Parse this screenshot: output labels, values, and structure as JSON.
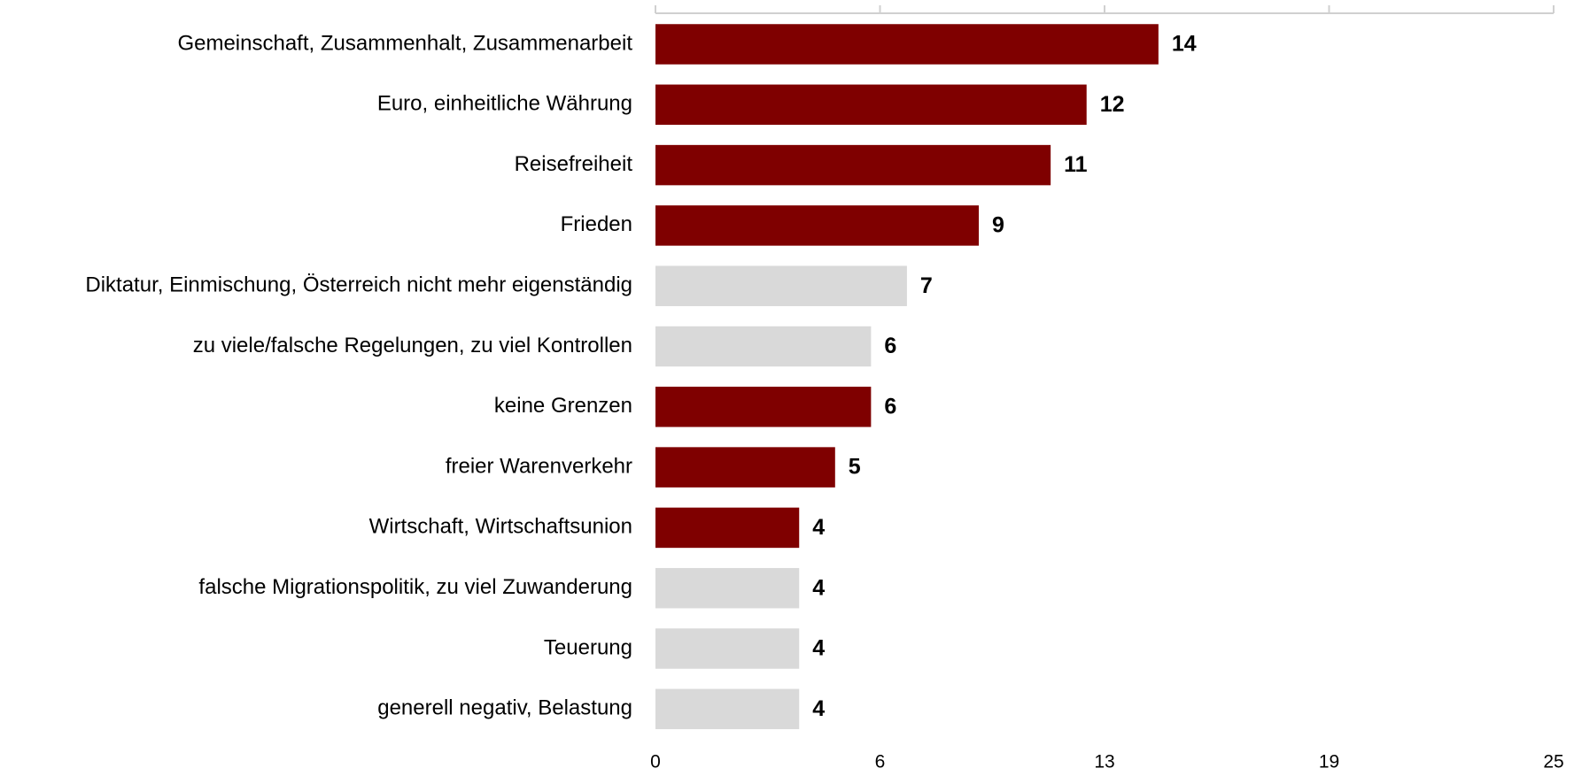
{
  "chart_data": {
    "type": "bar",
    "orientation": "horizontal",
    "categories": [
      "Gemeinschaft, Zusammenhalt, Zusammenarbeit",
      "Euro, einheitliche Währung",
      "Reisefreiheit",
      "Frieden",
      "Diktatur, Einmischung, Österreich nicht mehr eigenständig",
      "zu viele/falsche Regelungen, zu viel Kontrollen",
      "keine Grenzen",
      "freier Warenverkehr",
      "Wirtschaft, Wirtschaftsunion",
      "falsche Migrationspolitik, zu viel Zuwanderung",
      "Teuerung",
      "generell negativ, Belastung"
    ],
    "values": [
      14,
      12,
      11,
      9,
      7,
      6,
      6,
      5,
      4,
      4,
      4,
      4
    ],
    "colors": [
      "#7f0000",
      "#7f0000",
      "#7f0000",
      "#7f0000",
      "#d9d9d9",
      "#d9d9d9",
      "#7f0000",
      "#7f0000",
      "#7f0000",
      "#d9d9d9",
      "#d9d9d9",
      "#d9d9d9"
    ],
    "xlim": [
      0,
      25
    ],
    "xticks": [
      0,
      {
        "value": 6.25,
        "label": "6"
      },
      {
        "value": 12.5,
        "label": "13"
      },
      {
        "value": 18.75,
        "label": "19"
      },
      25
    ]
  }
}
